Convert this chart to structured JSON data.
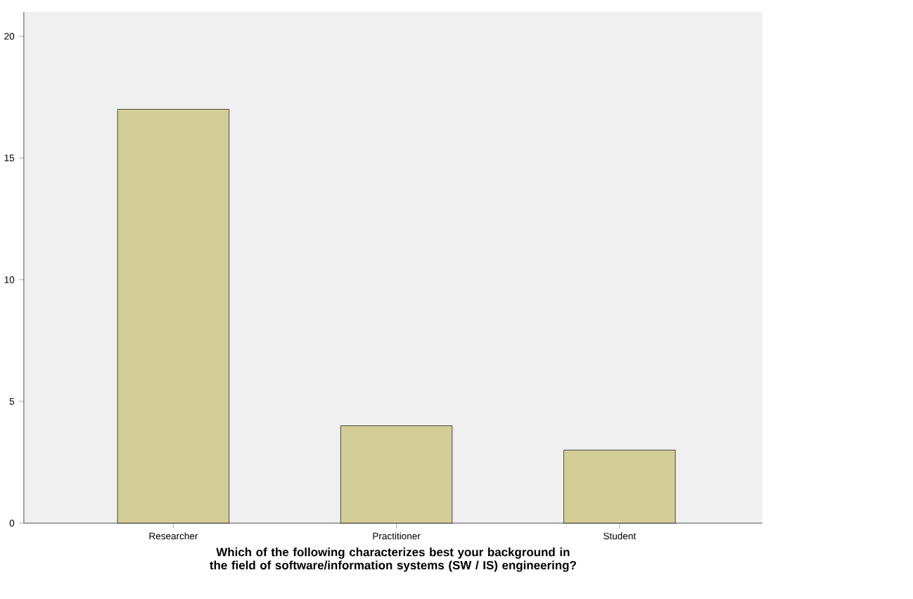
{
  "chart_data": {
    "type": "bar",
    "xlabel": "Which of the following characterizes best your background in the field of software/information systems (SW / IS) engineering?",
    "categories": [
      "Researcher",
      "Practitioner",
      "Student"
    ],
    "values": [
      17,
      4,
      3
    ],
    "color": "#d3ce97",
    "ylim": [
      0,
      21
    ],
    "yticks": [
      0,
      5,
      10,
      15,
      20
    ],
    "grid": false
  }
}
